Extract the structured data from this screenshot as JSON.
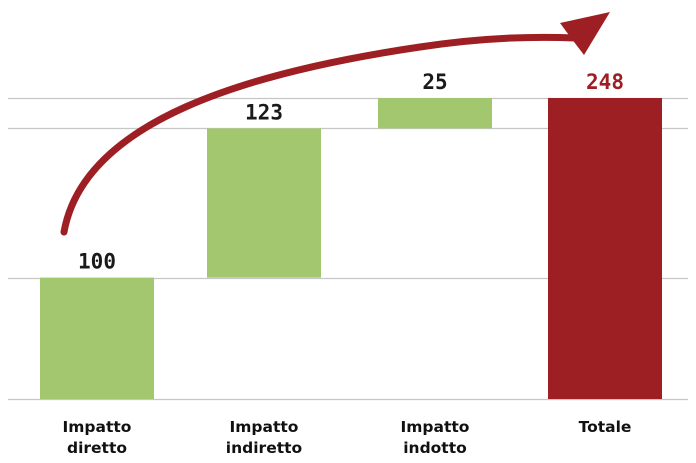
{
  "chart_data": {
    "type": "waterfall",
    "categories": [
      [
        "Impatto",
        "diretto"
      ],
      [
        "Impatto",
        "indiretto"
      ],
      [
        "Impatto",
        "indotto"
      ],
      [
        "Totale"
      ]
    ],
    "steps": [
      {
        "label": "100",
        "start": 0,
        "end": 100,
        "kind": "increment"
      },
      {
        "label": "123",
        "start": 100,
        "end": 223,
        "kind": "increment"
      },
      {
        "label": "25",
        "start": 223,
        "end": 248,
        "kind": "increment"
      },
      {
        "label": "248",
        "start": 0,
        "end": 248,
        "kind": "total"
      }
    ],
    "ylim": [
      0,
      248
    ],
    "gridlines": [
      0,
      100,
      223,
      248
    ],
    "grid": true,
    "arrow": {
      "from": "Impatto diretto",
      "to": "Totale"
    },
    "colors": {
      "increment": "#a3c76e",
      "total": "#9e1f23",
      "arrow": "#9e1f23",
      "grid": "#c6c6c6",
      "value_text": "#1a1a1a",
      "total_text": "#9e1f23"
    }
  }
}
